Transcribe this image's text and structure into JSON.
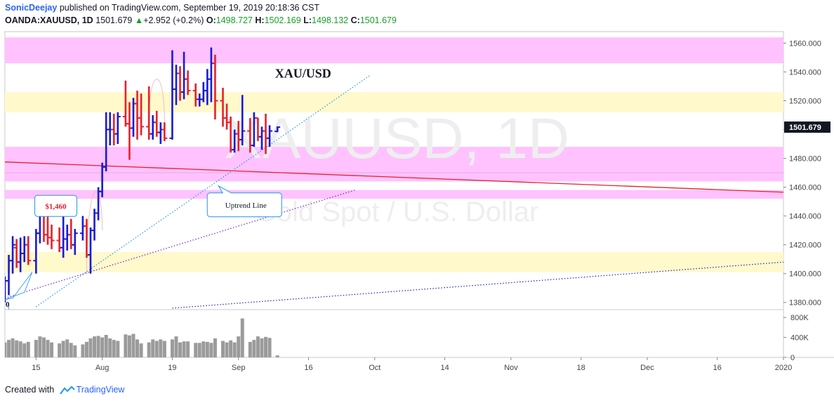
{
  "header": {
    "author": "SonicDeejay",
    "published": "published on TradingView.com, September 19, 2019 20:18:36 CST",
    "symbol": "OANDA:XAUUSD, 1D",
    "last": "1501.679",
    "change": "+2.952 (+0.2%)",
    "open_label": "O:",
    "open": "1498.727",
    "high_label": "H:",
    "high": "1502.169",
    "low_label": "L:",
    "low": "1498.132",
    "close_label": "C:",
    "close": "1501.679"
  },
  "footer": {
    "created_with": "Created with",
    "brand": "TradingView"
  },
  "colors": {
    "up": "#1a1ad6",
    "down": "#e8202a",
    "pink_zone": "#ffc2ff",
    "yellow_zone": "#fff9cc",
    "price_tag": "#131722"
  },
  "chart_data": {
    "type": "ohlc-bar",
    "title": "XAU/USD",
    "watermark": {
      "symbol": "XAUUSD, 1D",
      "description": "Gold Spot / U.S. Dollar"
    },
    "price_axis": {
      "ticks": [
        1380,
        1400,
        1420,
        1440,
        1460,
        1480,
        1500,
        1520,
        1540,
        1560
      ],
      "labels": [
        "1380.000",
        "1400.000",
        "1420.000",
        "1440.000",
        "1460.000",
        "1480.000",
        "1500.000",
        "1520.000",
        "1540.000",
        "1560.000"
      ],
      "range": [
        1375,
        1568
      ],
      "last_price": 1501.679,
      "last_label": "1501.679"
    },
    "volume_axis": {
      "labels": [
        "800K",
        "400K",
        "0"
      ],
      "values": [
        800000,
        400000,
        0
      ],
      "max": 900000
    },
    "time_axis": {
      "labels": [
        "15",
        "Aug",
        "19",
        "Sep",
        "16",
        "Oct",
        "14",
        "Nov",
        "18",
        "Dec",
        "16",
        "2020"
      ],
      "days_at_labels": [
        0,
        17,
        35,
        52,
        70,
        87,
        105,
        122,
        140,
        157,
        175,
        192
      ],
      "view_range": [
        -8,
        192
      ]
    },
    "bars": [
      {
        "d": -8,
        "o": 1388,
        "h": 1398,
        "l": 1380,
        "c": 1395
      },
      {
        "d": -7,
        "o": 1395,
        "h": 1413,
        "l": 1385,
        "c": 1409
      },
      {
        "d": -6,
        "o": 1409,
        "h": 1426,
        "l": 1400,
        "c": 1420
      },
      {
        "d": -5,
        "o": 1418,
        "h": 1424,
        "l": 1404,
        "c": 1408
      },
      {
        "d": -4,
        "o": 1408,
        "h": 1425,
        "l": 1401,
        "c": 1414
      },
      {
        "d": -3,
        "o": 1414,
        "h": 1426,
        "l": 1408,
        "c": 1420
      },
      {
        "d": -2,
        "o": 1420,
        "h": 1426,
        "l": 1406,
        "c": 1409
      },
      {
        "d": 0,
        "o": 1409,
        "h": 1431,
        "l": 1400,
        "c": 1428
      },
      {
        "d": 1,
        "o": 1428,
        "h": 1450,
        "l": 1421,
        "c": 1447
      },
      {
        "d": 2,
        "o": 1447,
        "h": 1452,
        "l": 1422,
        "c": 1427
      },
      {
        "d": 3,
        "o": 1427,
        "h": 1440,
        "l": 1420,
        "c": 1425
      },
      {
        "d": 4,
        "o": 1425,
        "h": 1434,
        "l": 1417,
        "c": 1423
      },
      {
        "d": 6,
        "o": 1423,
        "h": 1432,
        "l": 1415,
        "c": 1418
      },
      {
        "d": 7,
        "o": 1418,
        "h": 1446,
        "l": 1411,
        "c": 1424
      },
      {
        "d": 8,
        "o": 1424,
        "h": 1434,
        "l": 1416,
        "c": 1427
      },
      {
        "d": 9,
        "o": 1427,
        "h": 1438,
        "l": 1417,
        "c": 1420
      },
      {
        "d": 10,
        "o": 1420,
        "h": 1431,
        "l": 1413,
        "c": 1428
      },
      {
        "d": 12,
        "o": 1428,
        "h": 1440,
        "l": 1423,
        "c": 1433
      },
      {
        "d": 13,
        "o": 1433,
        "h": 1438,
        "l": 1411,
        "c": 1413
      },
      {
        "d": 14,
        "o": 1413,
        "h": 1432,
        "l": 1400,
        "c": 1430
      },
      {
        "d": 15,
        "o": 1430,
        "h": 1445,
        "l": 1423,
        "c": 1442
      },
      {
        "d": 16,
        "o": 1442,
        "h": 1460,
        "l": 1437,
        "c": 1457
      },
      {
        "d": 17,
        "o": 1457,
        "h": 1477,
        "l": 1453,
        "c": 1474
      },
      {
        "d": 18,
        "o": 1474,
        "h": 1512,
        "l": 1471,
        "c": 1500
      },
      {
        "d": 19,
        "o": 1500,
        "h": 1512,
        "l": 1489,
        "c": 1500
      },
      {
        "d": 20,
        "o": 1500,
        "h": 1511,
        "l": 1489,
        "c": 1497
      },
      {
        "d": 21,
        "o": 1497,
        "h": 1512,
        "l": 1490,
        "c": 1509
      },
      {
        "d": 23,
        "o": 1509,
        "h": 1534,
        "l": 1502,
        "c": 1504
      },
      {
        "d": 24,
        "o": 1504,
        "h": 1519,
        "l": 1479,
        "c": 1501
      },
      {
        "d": 25,
        "o": 1501,
        "h": 1522,
        "l": 1495,
        "c": 1518
      },
      {
        "d": 26,
        "o": 1518,
        "h": 1527,
        "l": 1493,
        "c": 1508
      },
      {
        "d": 27,
        "o": 1508,
        "h": 1525,
        "l": 1496,
        "c": 1502
      },
      {
        "d": 29,
        "o": 1502,
        "h": 1530,
        "l": 1493,
        "c": 1497
      },
      {
        "d": 30,
        "o": 1497,
        "h": 1510,
        "l": 1493,
        "c": 1505
      },
      {
        "d": 31,
        "o": 1505,
        "h": 1513,
        "l": 1495,
        "c": 1498
      },
      {
        "d": 32,
        "o": 1498,
        "h": 1505,
        "l": 1490,
        "c": 1500
      },
      {
        "d": 33,
        "o": 1500,
        "h": 1505,
        "l": 1492,
        "c": 1494
      },
      {
        "d": 35,
        "o": 1494,
        "h": 1555,
        "l": 1493,
        "c": 1528
      },
      {
        "d": 36,
        "o": 1528,
        "h": 1545,
        "l": 1517,
        "c": 1539
      },
      {
        "d": 37,
        "o": 1539,
        "h": 1544,
        "l": 1520,
        "c": 1526
      },
      {
        "d": 38,
        "o": 1526,
        "h": 1554,
        "l": 1521,
        "c": 1535
      },
      {
        "d": 39,
        "o": 1535,
        "h": 1541,
        "l": 1524,
        "c": 1527
      },
      {
        "d": 41,
        "o": 1527,
        "h": 1532,
        "l": 1516,
        "c": 1521
      },
      {
        "d": 42,
        "o": 1521,
        "h": 1525,
        "l": 1516,
        "c": 1521
      },
      {
        "d": 43,
        "o": 1521,
        "h": 1533,
        "l": 1519,
        "c": 1527
      },
      {
        "d": 44,
        "o": 1527,
        "h": 1542,
        "l": 1517,
        "c": 1535
      },
      {
        "d": 45,
        "o": 1535,
        "h": 1557,
        "l": 1519,
        "c": 1546
      },
      {
        "d": 46,
        "o": 1546,
        "h": 1552,
        "l": 1507,
        "c": 1520
      },
      {
        "d": 48,
        "o": 1520,
        "h": 1529,
        "l": 1502,
        "c": 1508
      },
      {
        "d": 49,
        "o": 1508,
        "h": 1518,
        "l": 1500,
        "c": 1505
      },
      {
        "d": 50,
        "o": 1505,
        "h": 1509,
        "l": 1484,
        "c": 1486
      },
      {
        "d": 51,
        "o": 1486,
        "h": 1500,
        "l": 1484,
        "c": 1497
      },
      {
        "d": 52,
        "o": 1497,
        "h": 1506,
        "l": 1485,
        "c": 1493
      },
      {
        "d": 53,
        "o": 1493,
        "h": 1524,
        "l": 1489,
        "c": 1499
      },
      {
        "d": 55,
        "o": 1499,
        "h": 1508,
        "l": 1484,
        "c": 1489
      },
      {
        "d": 56,
        "o": 1489,
        "h": 1512,
        "l": 1488,
        "c": 1508
      },
      {
        "d": 57,
        "o": 1508,
        "h": 1508,
        "l": 1492,
        "c": 1495
      },
      {
        "d": 58,
        "o": 1495,
        "h": 1502,
        "l": 1486,
        "c": 1499
      },
      {
        "d": 59,
        "o": 1499,
        "h": 1511,
        "l": 1483,
        "c": 1494
      },
      {
        "d": 60,
        "o": 1494,
        "h": 1503,
        "l": 1488,
        "c": 1499
      },
      {
        "d": 62,
        "o": 1498.727,
        "h": 1502.169,
        "l": 1498.132,
        "c": 1501.679
      }
    ],
    "volumes": [
      {
        "d": -8,
        "v": 300000
      },
      {
        "d": -7,
        "v": 350000
      },
      {
        "d": -6,
        "v": 380000
      },
      {
        "d": -5,
        "v": 340000
      },
      {
        "d": -4,
        "v": 320000
      },
      {
        "d": -3,
        "v": 280000
      },
      {
        "d": -2,
        "v": 310000
      },
      {
        "d": 0,
        "v": 350000
      },
      {
        "d": 1,
        "v": 420000
      },
      {
        "d": 2,
        "v": 400000
      },
      {
        "d": 3,
        "v": 350000
      },
      {
        "d": 4,
        "v": 300000
      },
      {
        "d": 6,
        "v": 280000
      },
      {
        "d": 7,
        "v": 330000
      },
      {
        "d": 8,
        "v": 360000
      },
      {
        "d": 9,
        "v": 290000
      },
      {
        "d": 10,
        "v": 240000
      },
      {
        "d": 12,
        "v": 260000
      },
      {
        "d": 13,
        "v": 310000
      },
      {
        "d": 14,
        "v": 380000
      },
      {
        "d": 15,
        "v": 420000
      },
      {
        "d": 16,
        "v": 430000
      },
      {
        "d": 17,
        "v": 400000
      },
      {
        "d": 18,
        "v": 450000
      },
      {
        "d": 19,
        "v": 380000
      },
      {
        "d": 20,
        "v": 350000
      },
      {
        "d": 21,
        "v": 330000
      },
      {
        "d": 23,
        "v": 460000
      },
      {
        "d": 24,
        "v": 440000
      },
      {
        "d": 25,
        "v": 470000
      },
      {
        "d": 26,
        "v": 360000
      },
      {
        "d": 27,
        "v": 280000
      },
      {
        "d": 29,
        "v": 300000
      },
      {
        "d": 30,
        "v": 360000
      },
      {
        "d": 31,
        "v": 330000
      },
      {
        "d": 32,
        "v": 360000
      },
      {
        "d": 33,
        "v": 330000
      },
      {
        "d": 35,
        "v": 360000
      },
      {
        "d": 36,
        "v": 420000
      },
      {
        "d": 37,
        "v": 300000
      },
      {
        "d": 38,
        "v": 320000
      },
      {
        "d": 39,
        "v": 320000
      },
      {
        "d": 41,
        "v": 290000
      },
      {
        "d": 42,
        "v": 290000
      },
      {
        "d": 43,
        "v": 320000
      },
      {
        "d": 44,
        "v": 310000
      },
      {
        "d": 45,
        "v": 290000
      },
      {
        "d": 46,
        "v": 380000
      },
      {
        "d": 48,
        "v": 330000
      },
      {
        "d": 49,
        "v": 300000
      },
      {
        "d": 50,
        "v": 340000
      },
      {
        "d": 51,
        "v": 300000
      },
      {
        "d": 52,
        "v": 420000
      },
      {
        "d": 53,
        "v": 780000
      },
      {
        "d": 55,
        "v": 310000
      },
      {
        "d": 56,
        "v": 350000
      },
      {
        "d": 57,
        "v": 420000
      },
      {
        "d": 58,
        "v": 380000
      },
      {
        "d": 59,
        "v": 410000
      },
      {
        "d": 60,
        "v": 390000
      },
      {
        "d": 62,
        "v": 40000
      }
    ],
    "zones": [
      {
        "name": "pink",
        "from": 1546,
        "to": 1564
      },
      {
        "name": "yellow",
        "from": 1512,
        "to": 1526
      },
      {
        "name": "pink",
        "from": 1464,
        "to": 1488
      },
      {
        "name": "pink",
        "from": 1452,
        "to": 1458
      },
      {
        "name": "yellow",
        "from": 1401,
        "to": 1415
      }
    ],
    "lines": [
      {
        "name": "red-trendline",
        "p1": {
          "d": -8,
          "price": 1477.5
        },
        "p2": {
          "d": 192,
          "price": 1456.5
        },
        "color": "#e8202a",
        "style": "solid"
      },
      {
        "name": "uptrend-line",
        "p1": {
          "d": 0,
          "price": 1377
        },
        "p2": {
          "d": 86,
          "price": 1538
        },
        "color": "#2196f3",
        "style": "dotted"
      },
      {
        "name": "purple-channel-upper",
        "p1": {
          "d": -8,
          "price": 1383
        },
        "p2": {
          "d": 82,
          "price": 1458
        },
        "color": "#7a1fd6",
        "style": "dotted"
      },
      {
        "name": "purple-channel-lower",
        "p1": {
          "d": 35,
          "price": 1376
        },
        "p2": {
          "d": 192,
          "price": 1408
        },
        "color": "#2222c8",
        "style": "dotted"
      }
    ],
    "annotations": [
      {
        "name": "price-callout",
        "text": "$1,460",
        "d": 4,
        "price": 1447
      },
      {
        "name": "uptrend-callout",
        "text": "Uptrend Line",
        "d": 53,
        "price": 1457
      },
      {
        "name": "title-label",
        "text": "XAU/USD",
        "d": 65,
        "price": 1539
      }
    ],
    "left_cut_label": "0",
    "grid": false
  }
}
